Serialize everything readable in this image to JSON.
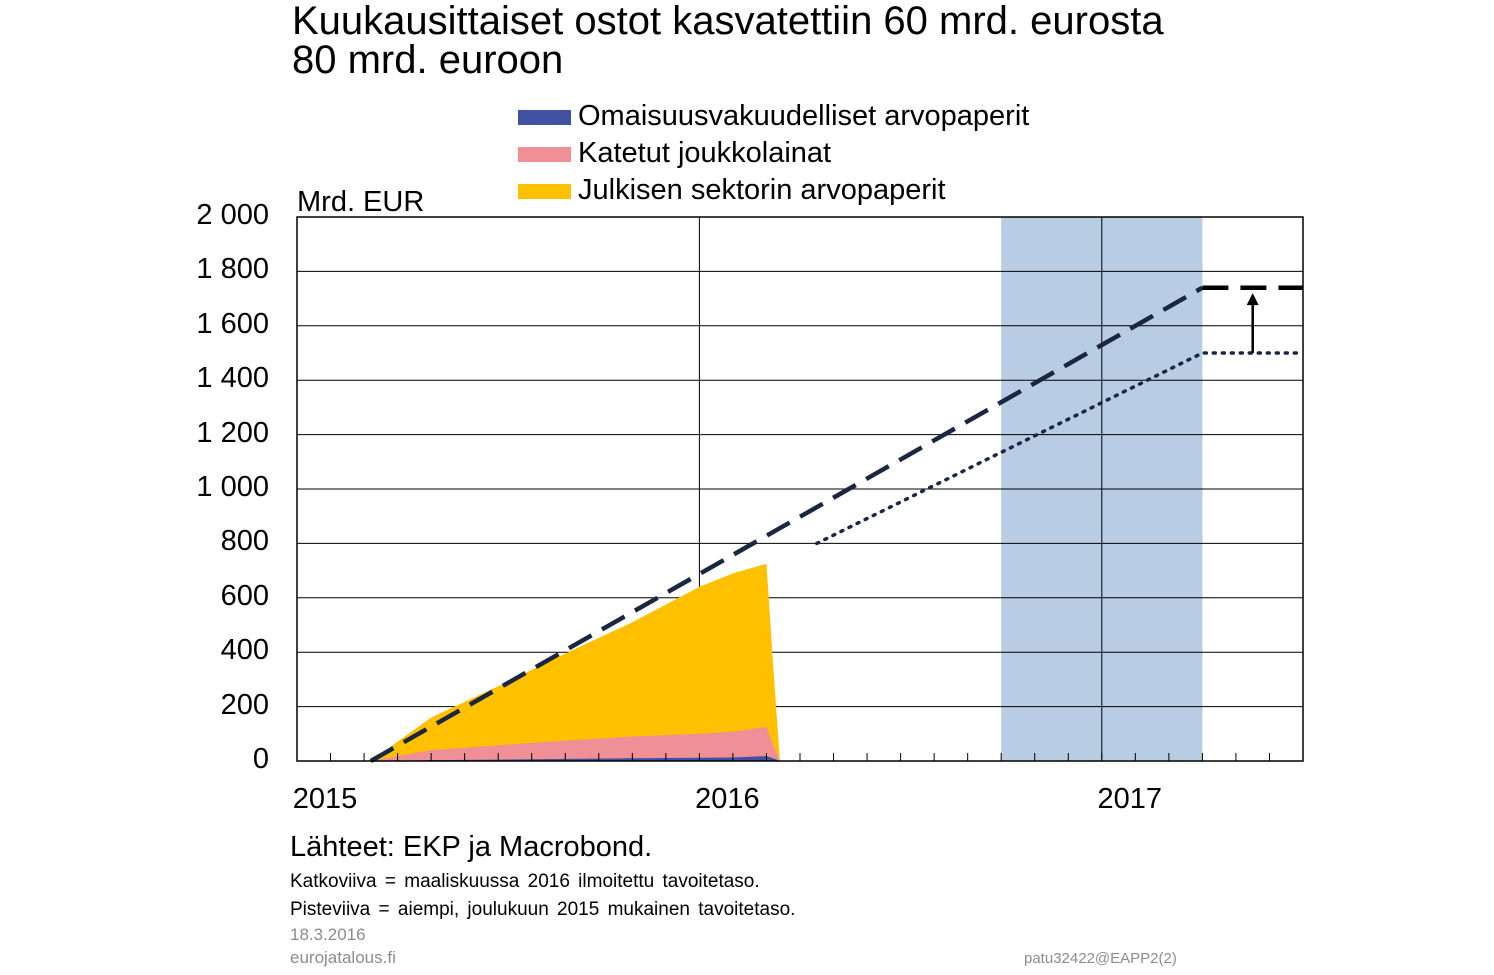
{
  "title_lines": [
    "Kuukausittaiset ostot kasvatettiin 60 mrd. eurosta",
    "80 mrd. euroon"
  ],
  "legend": [
    {
      "label": "Omaisuusvakuudelliset arvopaperit",
      "color": "#3f51a0"
    },
    {
      "label": "Katetut joukkolainat",
      "color": "#f09096"
    },
    {
      "label": "Julkisen sektorin arvopaperit",
      "color": "#ffc000"
    }
  ],
  "unit_label": "Mrd. EUR",
  "footer": {
    "source": "Lähteet: EKP ja Macrobond.",
    "notes": [
      "Katkoviiva = maaliskuussa 2016 ilmoitettu tavoitetaso.",
      "Pisteviiva = aiempi, joulukuun 2015 mukainen tavoitetaso."
    ],
    "date": "18.3.2016",
    "site": "eurojatalous.fi",
    "code": "patu32422@EAPP2(2)"
  },
  "colors": {
    "shading": "#b8cce4",
    "dashed_line": "#1a2740",
    "grid": "#000000"
  },
  "chart_data": {
    "type": "area",
    "x_unit": "months since 2015-01",
    "xlim": [
      0,
      30
    ],
    "ylim": [
      0,
      2000
    ],
    "ytick_labels": [
      "0",
      "200",
      "400",
      "600",
      "800",
      "1 000",
      "1 200",
      "1 400",
      "1 600",
      "1 800",
      "2 000"
    ],
    "ytick_values": [
      0,
      200,
      400,
      600,
      800,
      1000,
      1200,
      1400,
      1600,
      1800,
      2000
    ],
    "xtick_labels": [
      {
        "x": 0,
        "label": "2015"
      },
      {
        "x": 12,
        "label": "2016"
      },
      {
        "x": 24,
        "label": "2017"
      }
    ],
    "grid": true,
    "shaded_period": [
      21,
      27
    ],
    "series": [
      {
        "name": "Omaisuusvakuudelliset arvopaperit",
        "x": [
          2.2,
          4,
          6,
          8,
          10,
          12,
          13,
          14,
          14.2,
          14.4
        ],
        "values": [
          0,
          3,
          5,
          8,
          10,
          12,
          13,
          18,
          10,
          0
        ]
      },
      {
        "name": "Katetut joukkolainat",
        "x": [
          2.2,
          4,
          6,
          8,
          10,
          12,
          13,
          14,
          14.2,
          14.4
        ],
        "values": [
          0,
          40,
          58,
          75,
          90,
          100,
          108,
          125,
          60,
          0
        ]
      },
      {
        "name": "Julkisen sektorin arvopaperit",
        "x": [
          2.2,
          4,
          6,
          8,
          10,
          12,
          13,
          14,
          14.2,
          14.4
        ],
        "values": [
          0,
          160,
          275,
          395,
          510,
          640,
          690,
          725,
          350,
          0
        ]
      }
    ],
    "dashed_target": {
      "x": [
        2.2,
        27,
        30
      ],
      "values": [
        0,
        1740,
        1740
      ]
    },
    "dotted_target": {
      "x": [
        15.5,
        27,
        30
      ],
      "values": [
        800,
        1500,
        1500
      ]
    },
    "arrow": {
      "x": 28.5,
      "from": 1500,
      "to": 1720
    }
  }
}
